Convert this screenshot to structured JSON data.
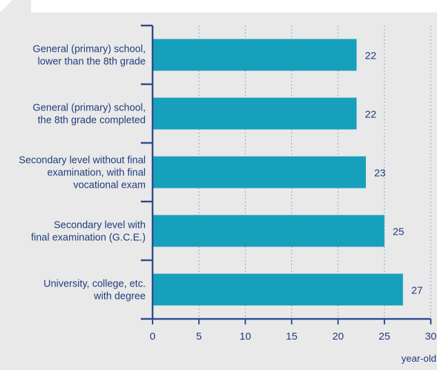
{
  "colors": {
    "bar": "#16a0bb",
    "axis": "#2d4a8a",
    "text": "#1f3d7a",
    "grid": "#8fa0c8"
  },
  "chart_data": {
    "type": "bar",
    "orientation": "horizontal",
    "categories": [
      [
        "General (primary) school,",
        "lower than the 8th grade"
      ],
      [
        "General (primary) school,",
        "the 8th grade completed"
      ],
      [
        "Secondary level without final",
        "examination, with final",
        "vocational exam"
      ],
      [
        "Secondary level with",
        "final examination (G.C.E.)"
      ],
      [
        "University, college, etc.",
        "with degree"
      ]
    ],
    "values": [
      22,
      22,
      23,
      25,
      27
    ],
    "data_labels": [
      "22",
      "22",
      "23",
      "25",
      "27"
    ],
    "xlim": [
      0,
      30
    ],
    "xticks": [
      "0",
      "5",
      "10",
      "15",
      "20",
      "25",
      "30"
    ],
    "xlabel": "year-old",
    "grid": "vertical dashed"
  }
}
